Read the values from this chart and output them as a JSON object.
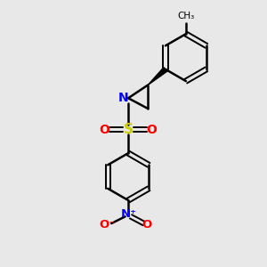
{
  "bg_color": "#e8e8e8",
  "bond_color": "#000000",
  "N_color": "#0000ff",
  "S_color": "#cccc00",
  "O_color": "#ff0000",
  "text_color": "#000000",
  "figsize": [
    3.0,
    3.0
  ],
  "dpi": 100,
  "xlim": [
    0,
    10
  ],
  "ylim": [
    0,
    10
  ]
}
